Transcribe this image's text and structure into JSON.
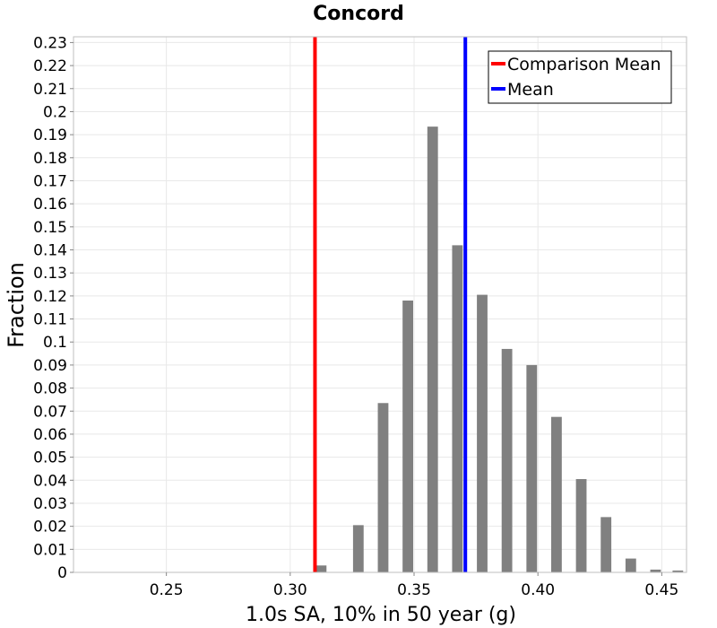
{
  "chart_data": {
    "type": "bar",
    "title": "Concord",
    "xlabel": "1.0s SA, 10% in 50 year (g)",
    "ylabel": "Fraction",
    "xlim": [
      0.2125,
      0.46
    ],
    "ylim": [
      0,
      0.2325
    ],
    "grid": true,
    "legend_position": "top-right",
    "x_ticks": [
      {
        "value": 0.25,
        "label": "0.25"
      },
      {
        "value": 0.3,
        "label": "0.30"
      },
      {
        "value": 0.35,
        "label": "0.35"
      },
      {
        "value": 0.4,
        "label": "0.40"
      },
      {
        "value": 0.45,
        "label": "0.45"
      }
    ],
    "y_ticks": [
      {
        "value": 0,
        "label": "0"
      },
      {
        "value": 0.01,
        "label": "0.01"
      },
      {
        "value": 0.02,
        "label": "0.02"
      },
      {
        "value": 0.03,
        "label": "0.03"
      },
      {
        "value": 0.04,
        "label": "0.04"
      },
      {
        "value": 0.05,
        "label": "0.05"
      },
      {
        "value": 0.06,
        "label": "0.06"
      },
      {
        "value": 0.07,
        "label": "0.07"
      },
      {
        "value": 0.08,
        "label": "0.08"
      },
      {
        "value": 0.09,
        "label": "0.09"
      },
      {
        "value": 0.1,
        "label": "0.1"
      },
      {
        "value": 0.11,
        "label": "0.11"
      },
      {
        "value": 0.12,
        "label": "0.12"
      },
      {
        "value": 0.13,
        "label": "0.13"
      },
      {
        "value": 0.14,
        "label": "0.14"
      },
      {
        "value": 0.15,
        "label": "0.15"
      },
      {
        "value": 0.16,
        "label": "0.16"
      },
      {
        "value": 0.17,
        "label": "0.17"
      },
      {
        "value": 0.18,
        "label": "0.18"
      },
      {
        "value": 0.19,
        "label": "0.19"
      },
      {
        "value": 0.2,
        "label": "0.2"
      },
      {
        "value": 0.21,
        "label": "0.21"
      },
      {
        "value": 0.22,
        "label": "0.22"
      },
      {
        "value": 0.23,
        "label": "0.23"
      }
    ],
    "bin_width": 0.005,
    "bins": [
      {
        "center": 0.3125,
        "value": 0.003
      },
      {
        "center": 0.3275,
        "value": 0.0205
      },
      {
        "center": 0.3375,
        "value": 0.0735
      },
      {
        "center": 0.3475,
        "value": 0.118
      },
      {
        "center": 0.3575,
        "value": 0.1935
      },
      {
        "center": 0.3675,
        "value": 0.142
      },
      {
        "center": 0.3775,
        "value": 0.1205
      },
      {
        "center": 0.3875,
        "value": 0.097
      },
      {
        "center": 0.3975,
        "value": 0.09
      },
      {
        "center": 0.4075,
        "value": 0.0675
      },
      {
        "center": 0.4175,
        "value": 0.0405
      },
      {
        "center": 0.4275,
        "value": 0.024
      },
      {
        "center": 0.4375,
        "value": 0.006
      },
      {
        "center": 0.4475,
        "value": 0.0012
      },
      {
        "center": 0.4565,
        "value": 0.0008
      }
    ],
    "bar_color": "#808080",
    "vlines": [
      {
        "name": "Comparison Mean",
        "x": 0.31,
        "color": "#ff0000"
      },
      {
        "name": "Mean",
        "x": 0.3707,
        "color": "#0000ff"
      }
    ]
  }
}
